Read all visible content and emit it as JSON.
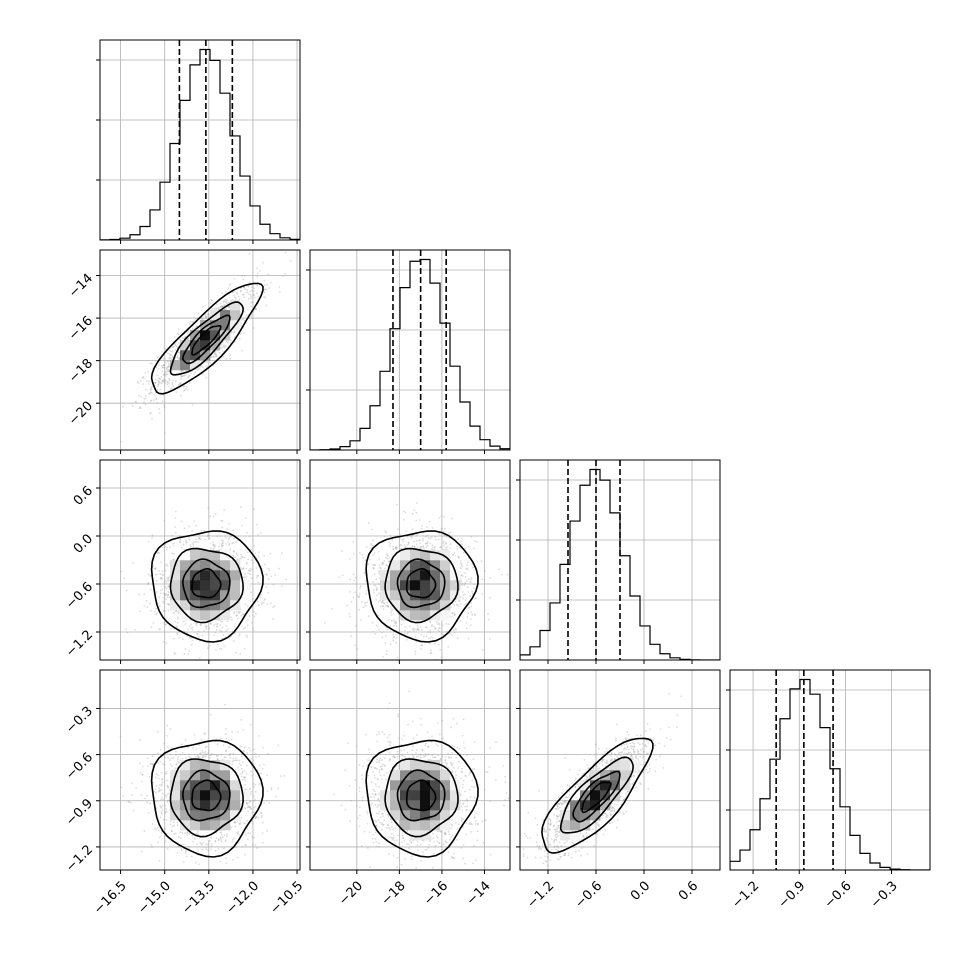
{
  "chart_data": {
    "type": "corner",
    "parameters": [
      {
        "range": [
          -17.2,
          -10.4
        ],
        "ticks": [
          -16.5,
          -15.0,
          -13.5,
          -12.0,
          -10.5
        ],
        "tick_labels": [
          "−16.5",
          "−15.0",
          "−13.5",
          "−12.0",
          "−10.5"
        ],
        "median": -13.6,
        "q16": -14.5,
        "q84": -12.7,
        "std": 0.9
      },
      {
        "range": [
          -22.2,
          -12.8
        ],
        "ticks": [
          -20,
          -18,
          -16,
          -14
        ],
        "tick_labels": [
          "−20",
          "−18",
          "−16",
          "−14"
        ],
        "median": -17.0,
        "q16": -18.3,
        "q84": -15.8,
        "std": 1.25
      },
      {
        "range": [
          -1.55,
          0.95
        ],
        "ticks": [
          -1.2,
          -0.6,
          0.0,
          0.6
        ],
        "tick_labels": [
          "−1.2",
          "−0.6",
          "0.0",
          "0.6"
        ],
        "median": -0.6,
        "q16": -0.95,
        "q84": -0.3,
        "std": 0.33
      },
      {
        "range": [
          -1.35,
          -0.05
        ],
        "ticks": [
          -1.2,
          -0.9,
          -0.6,
          -0.3
        ],
        "tick_labels": [
          "−1.2",
          "−0.9",
          "−0.6",
          "−0.3"
        ],
        "median": -0.87,
        "q16": -1.05,
        "q84": -0.68,
        "std": 0.18
      }
    ],
    "y_tick_labels": {
      "1": {
        "ticks": [
          -14,
          -16,
          -18,
          -20
        ],
        "labels": [
          "−14",
          "−16",
          "−18",
          "−20"
        ]
      },
      "2": {
        "ticks": [
          0.6,
          0.0,
          -0.6,
          -1.2
        ],
        "labels": [
          "0.6",
          "0.0",
          "−0.6",
          "−1.2"
        ]
      },
      "3": {
        "ticks": [
          -0.3,
          -0.6,
          -0.9,
          -1.2
        ],
        "labels": [
          "−0.3",
          "−0.6",
          "−0.9",
          "−1.2"
        ]
      }
    },
    "correlations": {
      "1-0": 0.85,
      "2-0": 0.0,
      "2-1": 0.0,
      "3-0": 0.0,
      "3-1": 0.0,
      "3-2": 0.8
    },
    "histogram_bins": 20,
    "quantiles": [
      0.16,
      0.5,
      0.84
    ],
    "contour_levels_sigma": [
      0.5,
      1.0,
      1.5,
      2.0
    ],
    "grid": true,
    "colors": {
      "points": "#9a9a9a",
      "lines": "#000000",
      "grid": "#b0b0b0"
    }
  }
}
